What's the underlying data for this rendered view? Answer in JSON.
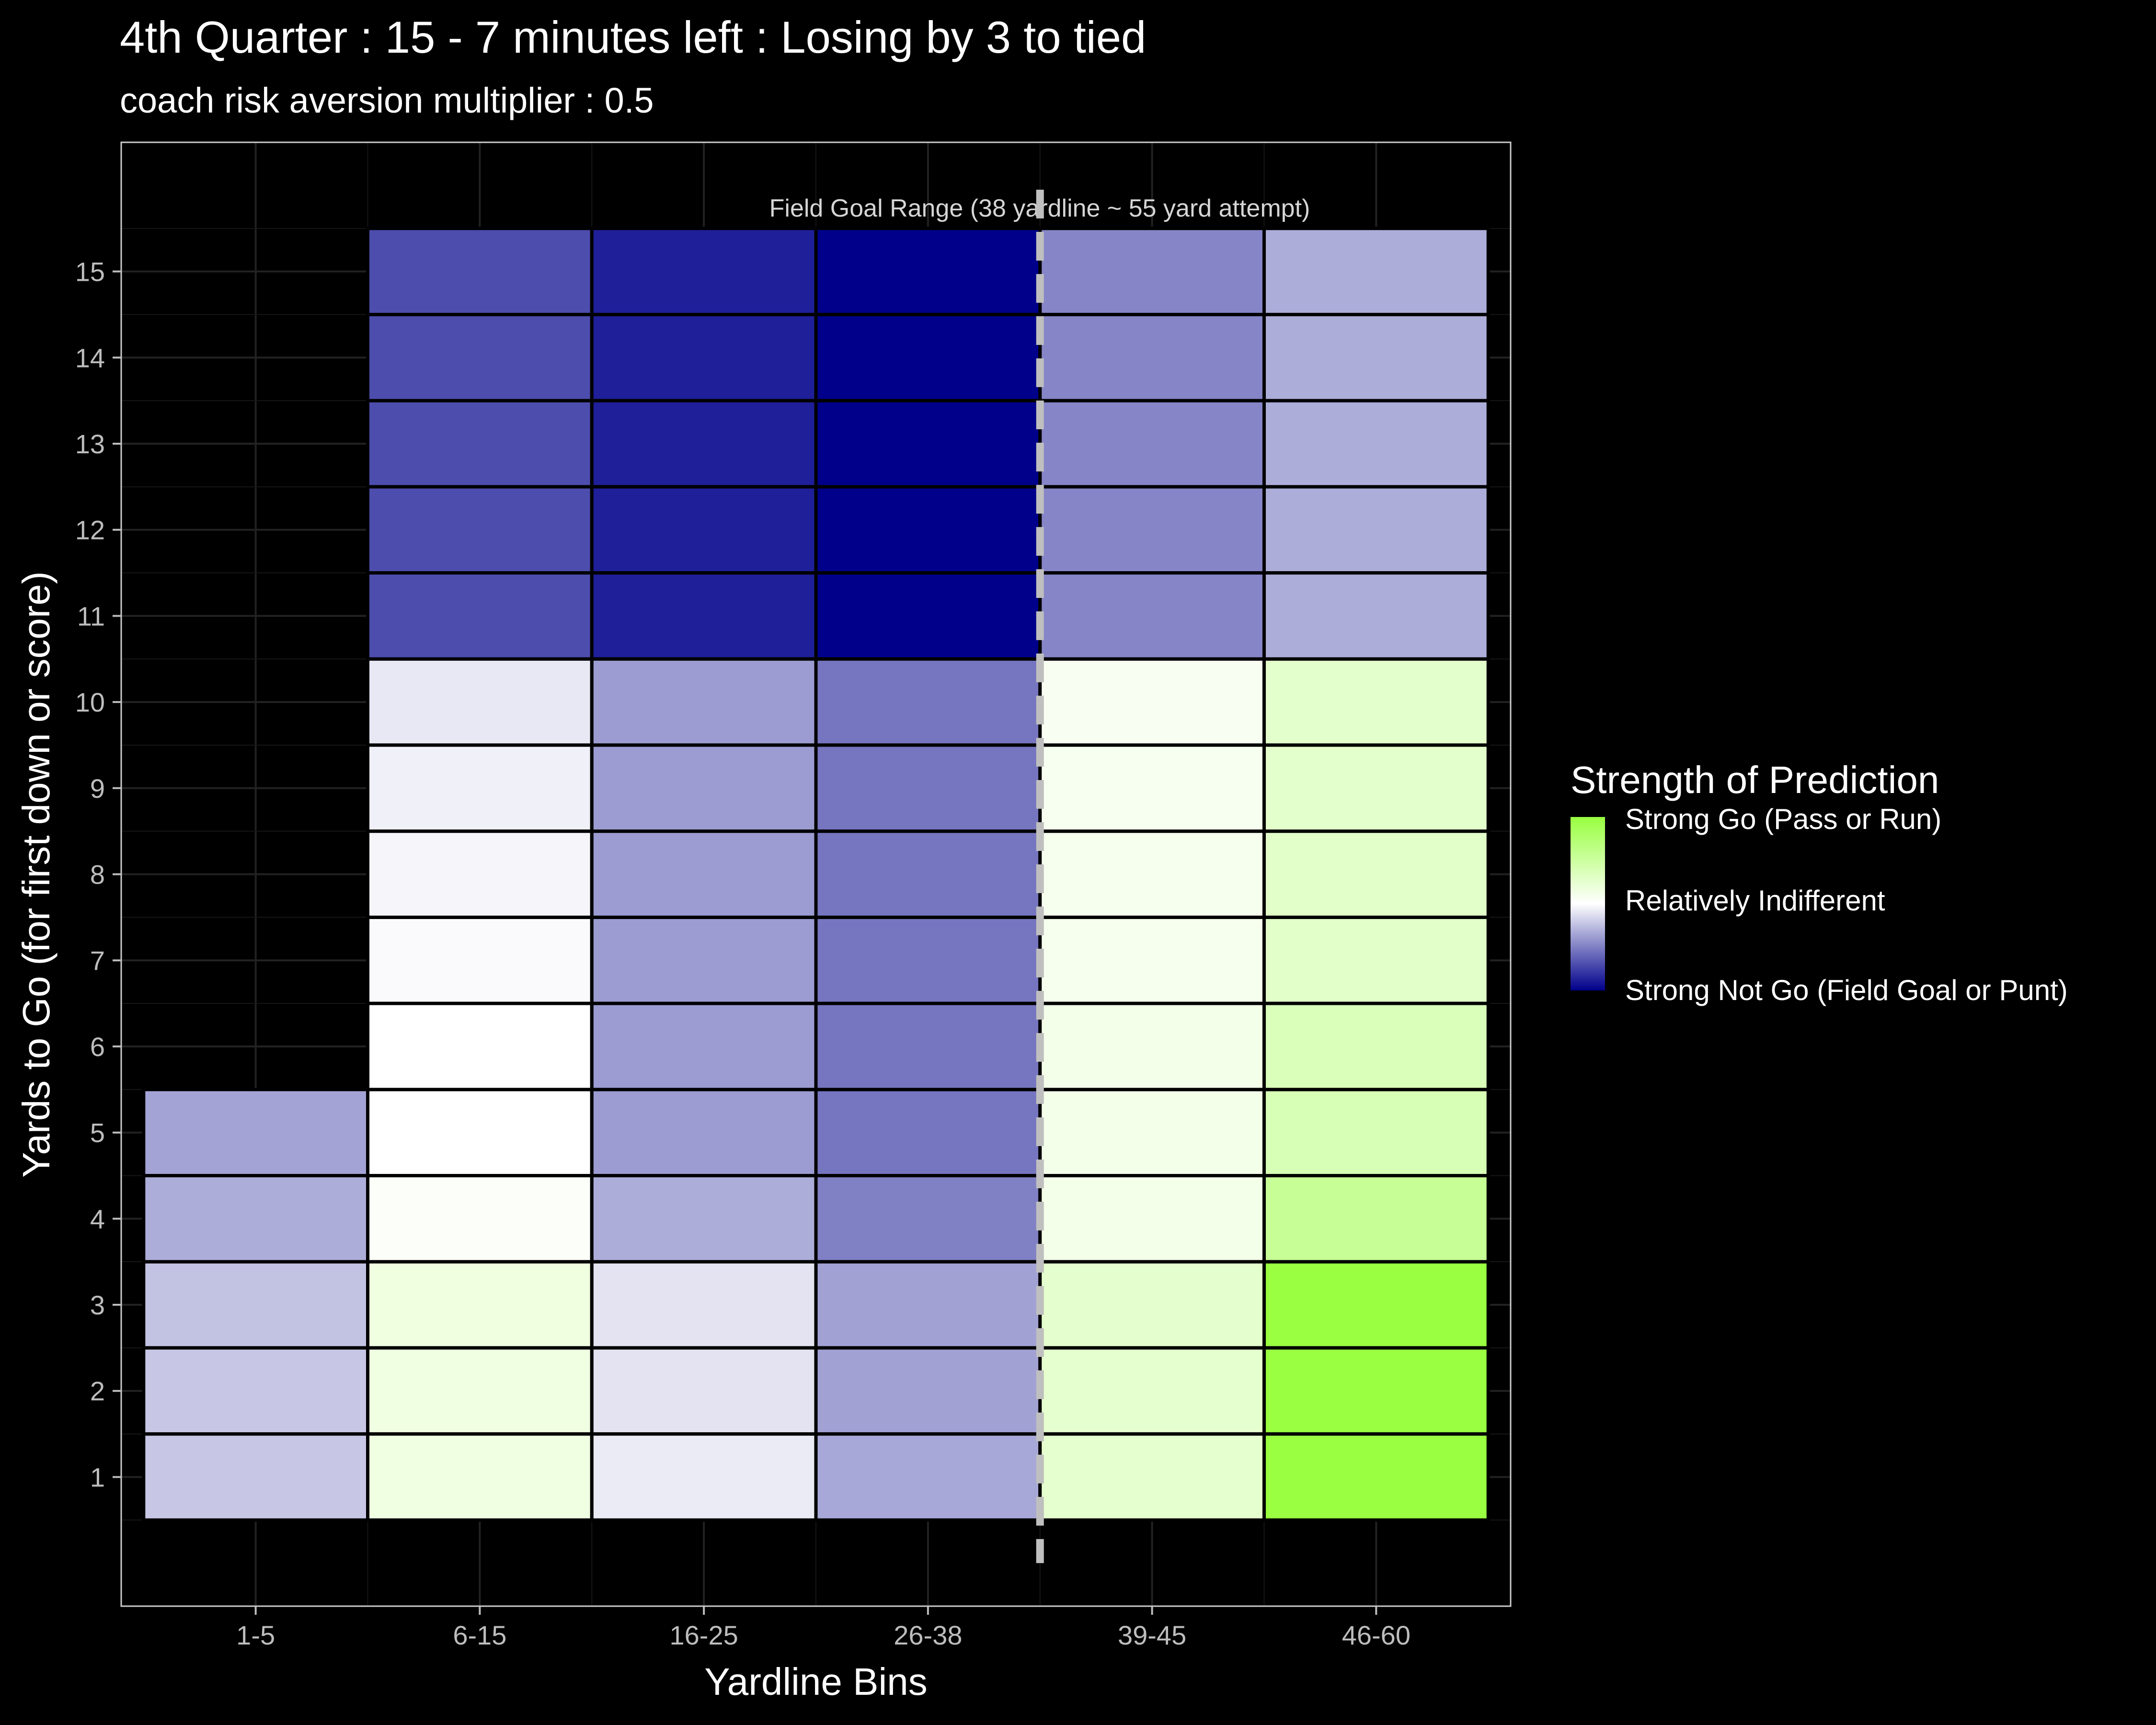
{
  "chart_data": {
    "type": "heatmap",
    "title": "4th Quarter : 15 - 7 minutes left : Losing by 3 to tied",
    "subtitle": "coach risk aversion multiplier : 0.5",
    "xlabel": "Yardline Bins",
    "ylabel": "Yards to Go (for first down or score)",
    "x_categories": [
      "1-5",
      "6-15",
      "16-25",
      "26-38",
      "39-45",
      "46-60"
    ],
    "y_values": [
      1,
      2,
      3,
      4,
      5,
      6,
      7,
      8,
      9,
      10,
      11,
      12,
      13,
      14,
      15
    ],
    "ylim": [
      -0.5,
      16.5
    ],
    "grid": true,
    "value_scale": "-1 = Strong Not Go (Field Goal or Punt), 0 = Relatively Indifferent, 1 = Strong Go (Pass or Run)",
    "cells": [
      {
        "x": "1-5",
        "y": 1,
        "value": -0.22
      },
      {
        "x": "1-5",
        "y": 2,
        "value": -0.22
      },
      {
        "x": "1-5",
        "y": 3,
        "value": -0.24
      },
      {
        "x": "1-5",
        "y": 4,
        "value": -0.32
      },
      {
        "x": "1-5",
        "y": 5,
        "value": -0.36
      },
      {
        "x": "6-15",
        "y": 1,
        "value": 0.15
      },
      {
        "x": "6-15",
        "y": 2,
        "value": 0.15
      },
      {
        "x": "6-15",
        "y": 3,
        "value": 0.16
      },
      {
        "x": "6-15",
        "y": 4,
        "value": 0.03
      },
      {
        "x": "6-15",
        "y": 5,
        "value": 0.0
      },
      {
        "x": "6-15",
        "y": 6,
        "value": 0.0
      },
      {
        "x": "6-15",
        "y": 7,
        "value": -0.02
      },
      {
        "x": "6-15",
        "y": 8,
        "value": -0.04
      },
      {
        "x": "6-15",
        "y": 9,
        "value": -0.06
      },
      {
        "x": "6-15",
        "y": 10,
        "value": -0.09
      },
      {
        "x": "6-15",
        "y": 11,
        "value": -0.7
      },
      {
        "x": "6-15",
        "y": 12,
        "value": -0.7
      },
      {
        "x": "6-15",
        "y": 13,
        "value": -0.7
      },
      {
        "x": "6-15",
        "y": 14,
        "value": -0.7
      },
      {
        "x": "6-15",
        "y": 15,
        "value": -0.7
      },
      {
        "x": "16-25",
        "y": 1,
        "value": -0.08
      },
      {
        "x": "16-25",
        "y": 2,
        "value": -0.11
      },
      {
        "x": "16-25",
        "y": 3,
        "value": -0.11
      },
      {
        "x": "16-25",
        "y": 4,
        "value": -0.32
      },
      {
        "x": "16-25",
        "y": 5,
        "value": -0.39
      },
      {
        "x": "16-25",
        "y": 6,
        "value": -0.39
      },
      {
        "x": "16-25",
        "y": 7,
        "value": -0.39
      },
      {
        "x": "16-25",
        "y": 8,
        "value": -0.39
      },
      {
        "x": "16-25",
        "y": 9,
        "value": -0.39
      },
      {
        "x": "16-25",
        "y": 10,
        "value": -0.39
      },
      {
        "x": "16-25",
        "y": 11,
        "value": -0.88
      },
      {
        "x": "16-25",
        "y": 12,
        "value": -0.88
      },
      {
        "x": "16-25",
        "y": 13,
        "value": -0.88
      },
      {
        "x": "16-25",
        "y": 14,
        "value": -0.88
      },
      {
        "x": "16-25",
        "y": 15,
        "value": -0.88
      },
      {
        "x": "26-38",
        "y": 1,
        "value": -0.34
      },
      {
        "x": "26-38",
        "y": 2,
        "value": -0.37
      },
      {
        "x": "26-38",
        "y": 3,
        "value": -0.37
      },
      {
        "x": "26-38",
        "y": 4,
        "value": -0.5
      },
      {
        "x": "26-38",
        "y": 5,
        "value": -0.54
      },
      {
        "x": "26-38",
        "y": 6,
        "value": -0.54
      },
      {
        "x": "26-38",
        "y": 7,
        "value": -0.54
      },
      {
        "x": "26-38",
        "y": 8,
        "value": -0.54
      },
      {
        "x": "26-38",
        "y": 9,
        "value": -0.54
      },
      {
        "x": "26-38",
        "y": 10,
        "value": -0.54
      },
      {
        "x": "26-38",
        "y": 11,
        "value": -1.0
      },
      {
        "x": "26-38",
        "y": 12,
        "value": -1.0
      },
      {
        "x": "26-38",
        "y": 13,
        "value": -1.0
      },
      {
        "x": "26-38",
        "y": 14,
        "value": -1.0
      },
      {
        "x": "26-38",
        "y": 15,
        "value": -1.0
      },
      {
        "x": "39-45",
        "y": 1,
        "value": 0.25
      },
      {
        "x": "39-45",
        "y": 2,
        "value": 0.25
      },
      {
        "x": "39-45",
        "y": 3,
        "value": 0.26
      },
      {
        "x": "39-45",
        "y": 4,
        "value": 0.12
      },
      {
        "x": "39-45",
        "y": 5,
        "value": 0.11
      },
      {
        "x": "39-45",
        "y": 6,
        "value": 0.11
      },
      {
        "x": "39-45",
        "y": 7,
        "value": 0.09
      },
      {
        "x": "39-45",
        "y": 8,
        "value": 0.09
      },
      {
        "x": "39-45",
        "y": 9,
        "value": 0.08
      },
      {
        "x": "39-45",
        "y": 10,
        "value": 0.07
      },
      {
        "x": "39-45",
        "y": 11,
        "value": -0.48
      },
      {
        "x": "39-45",
        "y": 12,
        "value": -0.48
      },
      {
        "x": "39-45",
        "y": 13,
        "value": -0.48
      },
      {
        "x": "39-45",
        "y": 14,
        "value": -0.48
      },
      {
        "x": "39-45",
        "y": 15,
        "value": -0.48
      },
      {
        "x": "46-60",
        "y": 1,
        "value": 1.0
      },
      {
        "x": "46-60",
        "y": 2,
        "value": 1.0
      },
      {
        "x": "46-60",
        "y": 3,
        "value": 1.0
      },
      {
        "x": "46-60",
        "y": 4,
        "value": 0.55
      },
      {
        "x": "46-60",
        "y": 5,
        "value": 0.38
      },
      {
        "x": "46-60",
        "y": 6,
        "value": 0.36
      },
      {
        "x": "46-60",
        "y": 7,
        "value": 0.28
      },
      {
        "x": "46-60",
        "y": 8,
        "value": 0.28
      },
      {
        "x": "46-60",
        "y": 9,
        "value": 0.27
      },
      {
        "x": "46-60",
        "y": 10,
        "value": 0.27
      },
      {
        "x": "46-60",
        "y": 11,
        "value": -0.32
      },
      {
        "x": "46-60",
        "y": 12,
        "value": -0.32
      },
      {
        "x": "46-60",
        "y": 13,
        "value": -0.32
      },
      {
        "x": "46-60",
        "y": 14,
        "value": -0.32
      },
      {
        "x": "46-60",
        "y": 15,
        "value": -0.32
      }
    ],
    "annotation": {
      "text": "Field Goal Range (38 yardline ~ 55 yard attempt)",
      "line_between": [
        "26-38",
        "39-45"
      ],
      "line_style": "dashed"
    },
    "legend": {
      "title": "Strength of Prediction",
      "placement": "right",
      "labels": [
        "Strong Go (Pass or Run)",
        "Relatively Indifferent",
        "Strong Not Go (Field Goal or Punt)"
      ]
    },
    "colors": {
      "background": "#000000",
      "panel_border": "#cccccc",
      "grid": "#222222",
      "strong_go": "#99FF40",
      "indifferent": "#FFFFFF",
      "strong_not_go": "#00008B",
      "cell_border": "#000000",
      "annotation_line": "#bfbfbf"
    }
  }
}
